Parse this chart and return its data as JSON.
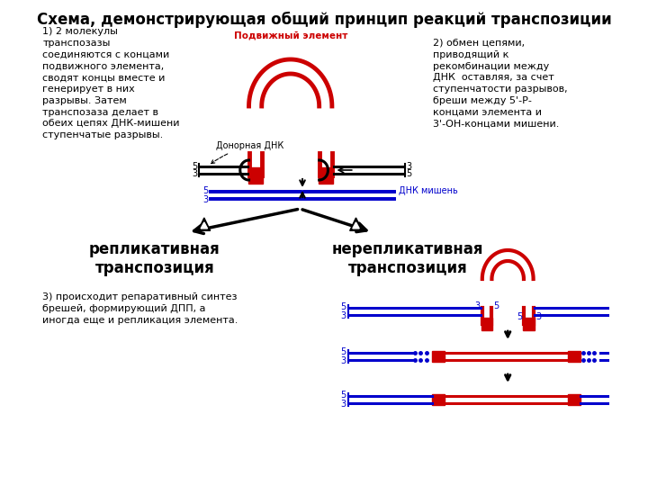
{
  "title": "Схема, демонстрирующая общий принцип реакций транспозиции",
  "title_fontsize": 12,
  "bg_color": "#ffffff",
  "text_color": "#000000",
  "blue_color": "#0000cc",
  "red_color": "#cc0000",
  "annotation1": "1) 2 молекулы\nтранспозазы\nсоединяются с концами\nподвижного элемента,\nсводят концы вместе и\nгенерирует в них\nразрывы. Затем\nтранспозаза делает в\nобеих цепях ДНК-мишени\nступенчатые разрывы.",
  "annotation2": "2) обмен цепями,\nприводящий к\nрекомбинации между\nДНК  оставляя, за счет\nступенчатости разрывов,\nбреши между 5'-Р-\nконцами элемента и\n3'-ОН-концами мишени.",
  "annotation3": "3) происходит репаративный синтез\nбрешей, формирующий ДПП, а\nиногда еще и репликация элемента.",
  "label_repl": "репликативная\nтранспозиция",
  "label_nonrepl": "нерепликативная\nтранспозиция",
  "label_donor": "Донорная ДНК",
  "label_target": "ДНК мишень",
  "label_mobile": "Подвижный элемент"
}
